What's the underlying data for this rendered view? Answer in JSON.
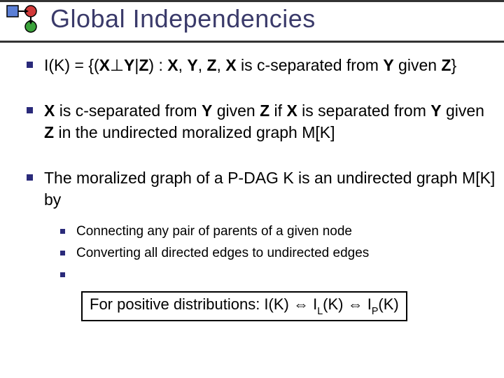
{
  "colors": {
    "title_color": "#3a3a6a",
    "bullet_color": "#2a2a7a",
    "rule_color": "#333333",
    "text_color": "#000000",
    "logo_blue": "#5b7fd6",
    "logo_red": "#d23a3a",
    "logo_green": "#3aa23a",
    "logo_outline": "#000000"
  },
  "title": "Global Independencies",
  "bullets": [
    {
      "html": "I(K) = {(<b>X</b>⊥<b>Y</b>|<b>Z</b>) : <b>X</b>, <b>Y</b>, <b>Z</b>, <b>X</b> is c-separated from <b>Y</b> given <b>Z</b>}"
    },
    {
      "html": "<b>X</b> is c-separated from <b>Y</b> given <b>Z</b> if <b>X</b> is separated from <b>Y</b> given <b>Z</b> in the undirected moralized graph M[K]"
    },
    {
      "html": "The moralized graph of a P-DAG K is an undirected graph M[K] by"
    }
  ],
  "subbullets": [
    {
      "text": "Connecting any pair of parents of a given node"
    },
    {
      "text": "Converting all directed edges to undirected edges"
    },
    {
      "tail": true
    }
  ],
  "boxed": {
    "prefix": "For positive distributions: I(K) ⇔ I",
    "sub1": "L",
    "mid": "(K) ⇔ I",
    "sub2": "P",
    "suffix": "(K)"
  }
}
